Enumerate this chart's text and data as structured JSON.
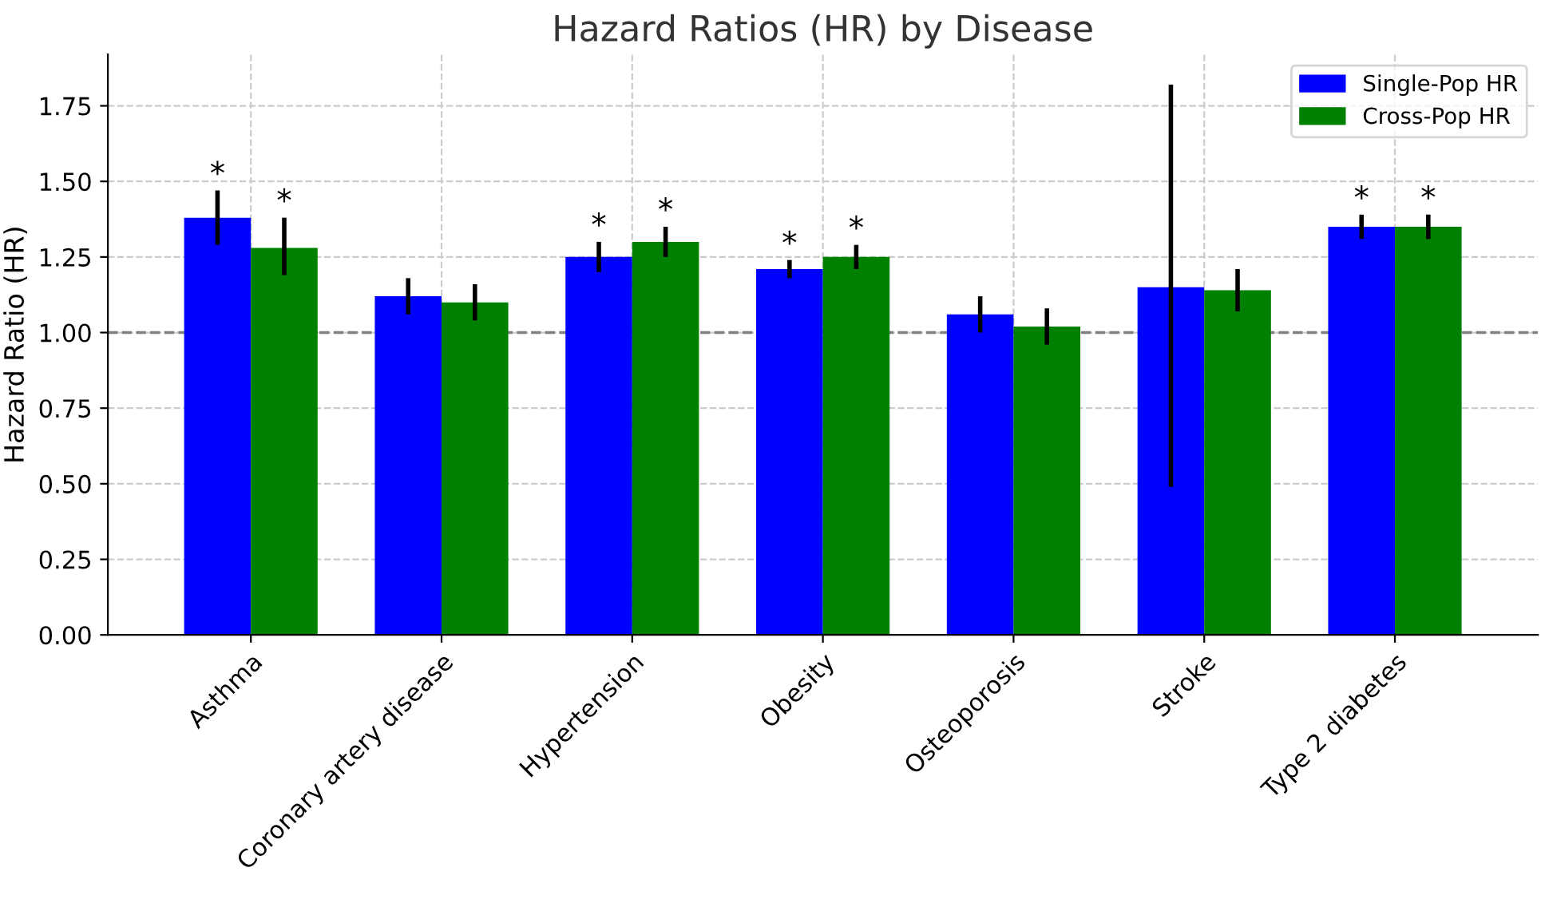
{
  "chart_data": {
    "type": "bar",
    "title": "Hazard Ratios (HR) by Disease",
    "ylabel": "Hazard Ratio (HR)",
    "categories": [
      "Asthma",
      "Coronary artery disease",
      "Hypertension",
      "Obesity",
      "Osteoporosis",
      "Stroke",
      "Type 2 diabetes"
    ],
    "series": [
      {
        "name": "Single-Pop HR",
        "color": "#0000ff",
        "values": [
          1.38,
          1.12,
          1.25,
          1.21,
          1.06,
          1.15,
          1.35
        ],
        "errors": [
          [
            1.29,
            1.47
          ],
          [
            1.06,
            1.18
          ],
          [
            1.2,
            1.3
          ],
          [
            1.18,
            1.24
          ],
          [
            1.0,
            1.12
          ],
          [
            0.49,
            1.82
          ],
          [
            1.31,
            1.39
          ]
        ],
        "value_labels": [
          "*",
          null,
          "*",
          "*",
          null,
          null,
          "*"
        ]
      },
      {
        "name": "Cross-Pop HR",
        "color": "#008000",
        "values": [
          1.28,
          1.1,
          1.3,
          1.25,
          1.02,
          1.14,
          1.35
        ],
        "errors": [
          [
            1.19,
            1.38
          ],
          [
            1.04,
            1.16
          ],
          [
            1.25,
            1.35
          ],
          [
            1.21,
            1.29
          ],
          [
            0.96,
            1.08
          ],
          [
            1.07,
            1.21
          ],
          [
            1.31,
            1.39
          ]
        ],
        "value_labels": [
          "*",
          null,
          "*",
          "*",
          null,
          null,
          "*"
        ]
      }
    ],
    "ylim": [
      0,
      1.92
    ],
    "yticks": [
      {
        "value": 0,
        "label": "0.00"
      },
      0.25,
      {
        "value": 0.5,
        "label": "0.50"
      },
      0.75,
      {
        "value": 1,
        "label": "1.00"
      },
      1.25,
      {
        "value": 1.5,
        "label": "1.50"
      },
      1.75
    ],
    "ref_lines": [
      {
        "axis": "y",
        "value": 1.0,
        "label": null,
        "color": "#808080",
        "line_style": "dashed"
      }
    ],
    "grid": true,
    "legend": "top right"
  }
}
